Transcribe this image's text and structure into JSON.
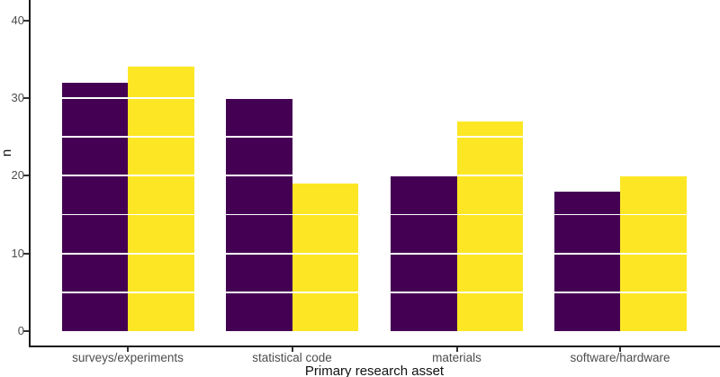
{
  "figure": {
    "y_axis_title": "n",
    "x_axis_title": "Primary research asset"
  },
  "chart_data": {
    "type": "bar",
    "title": "",
    "xlabel": "Primary research asset",
    "ylabel": "n",
    "categories": [
      "surveys/experiments",
      "statistical code",
      "materials",
      "software/hardware"
    ],
    "series": [
      {
        "name": "dark-purple",
        "color": "#440154",
        "values": [
          32,
          30,
          20,
          18
        ]
      },
      {
        "name": "yellow",
        "color": "#FDE725",
        "values": [
          34,
          19,
          27,
          20
        ]
      }
    ],
    "yticks": [
      0,
      10,
      20,
      30,
      40
    ],
    "ylim": [
      0,
      44
    ],
    "grid": {
      "color": "#FFFFFF",
      "interval": 5,
      "drawn_over_bars": true,
      "major_every": 10
    },
    "legend_position": "none-visible",
    "axis_text_color": "#4d4d4d",
    "axis_line_color": "#1a1a1a"
  }
}
